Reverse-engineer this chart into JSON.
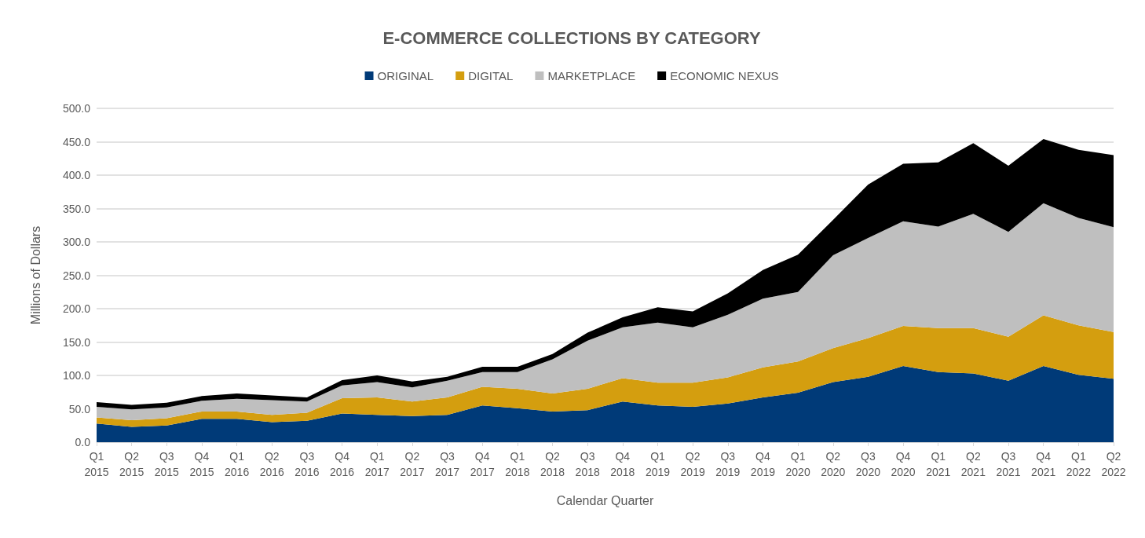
{
  "chart_data": {
    "type": "area",
    "title": "E-COMMERCE COLLECTIONS BY CATEGORY",
    "xlabel": "Calendar Quarter",
    "ylabel": "Millions of Dollars",
    "stacked": true,
    "legend": "top",
    "grid": "y",
    "categories": [
      "Q1\n2015",
      "Q2\n2015",
      "Q3\n2015",
      "Q4\n2015",
      "Q1\n2016",
      "Q2\n2016",
      "Q3\n2016",
      "Q4\n2016",
      "Q1\n2017",
      "Q2\n2017",
      "Q3\n2017",
      "Q4\n2017",
      "Q1\n2018",
      "Q2\n2018",
      "Q3\n2018",
      "Q4\n2018",
      "Q1\n2019",
      "Q2\n2019",
      "Q3\n2019",
      "Q4\n2019",
      "Q1\n2020",
      "Q2\n2020",
      "Q3\n2020",
      "Q4\n2020",
      "Q1\n2021",
      "Q2\n2021",
      "Q3\n2021",
      "Q4\n2021",
      "Q1\n2022",
      "Q2\n2022"
    ],
    "ylim": [
      0,
      500
    ],
    "yticks": [
      {
        "value": 0,
        "label": "0.0"
      },
      {
        "value": 50,
        "label": "50.0"
      },
      {
        "value": 100,
        "label": "100.0"
      },
      {
        "value": 150,
        "label": "150.0"
      },
      {
        "value": 200,
        "label": "200.0"
      },
      {
        "value": 250,
        "label": "250.0"
      },
      {
        "value": 300,
        "label": "300.0"
      },
      {
        "value": 350,
        "label": "350.0"
      },
      {
        "value": 400,
        "label": "400.0"
      },
      {
        "value": 450,
        "label": "450.0"
      },
      {
        "value": 500,
        "label": "500.0"
      }
    ],
    "series": [
      {
        "name": "ORIGINAL",
        "color": "#003a78",
        "values": [
          28,
          23,
          25,
          35,
          35,
          30,
          32,
          43,
          41,
          39,
          41,
          55,
          51,
          46,
          48,
          61,
          55,
          53,
          58,
          67,
          74,
          90,
          98,
          114,
          105,
          103,
          92,
          114,
          101,
          95
        ]
      },
      {
        "name": "DIGITAL",
        "color": "#d49e0f",
        "values": [
          9,
          10,
          11,
          11,
          11,
          11,
          12,
          23,
          26,
          22,
          26,
          28,
          29,
          27,
          32,
          35,
          34,
          36,
          39,
          45,
          47,
          51,
          58,
          60,
          66,
          68,
          66,
          76,
          74,
          70
        ]
      },
      {
        "name": "MARKETPLACE",
        "color": "#bfbfbf",
        "values": [
          16,
          16,
          16,
          16,
          19,
          22,
          17,
          19,
          23,
          21,
          25,
          22,
          25,
          51,
          72,
          76,
          90,
          83,
          94,
          103,
          104,
          139,
          150,
          157,
          152,
          171,
          157,
          168,
          161,
          157
        ]
      },
      {
        "name": "ECONOMIC NEXUS",
        "color": "#000000",
        "values": [
          7,
          7,
          7,
          7,
          8,
          7,
          6,
          8,
          10,
          9,
          6,
          8,
          8,
          8,
          12,
          15,
          23,
          24,
          32,
          43,
          56,
          53,
          80,
          86,
          96,
          106,
          99,
          96,
          102,
          108
        ]
      }
    ]
  }
}
